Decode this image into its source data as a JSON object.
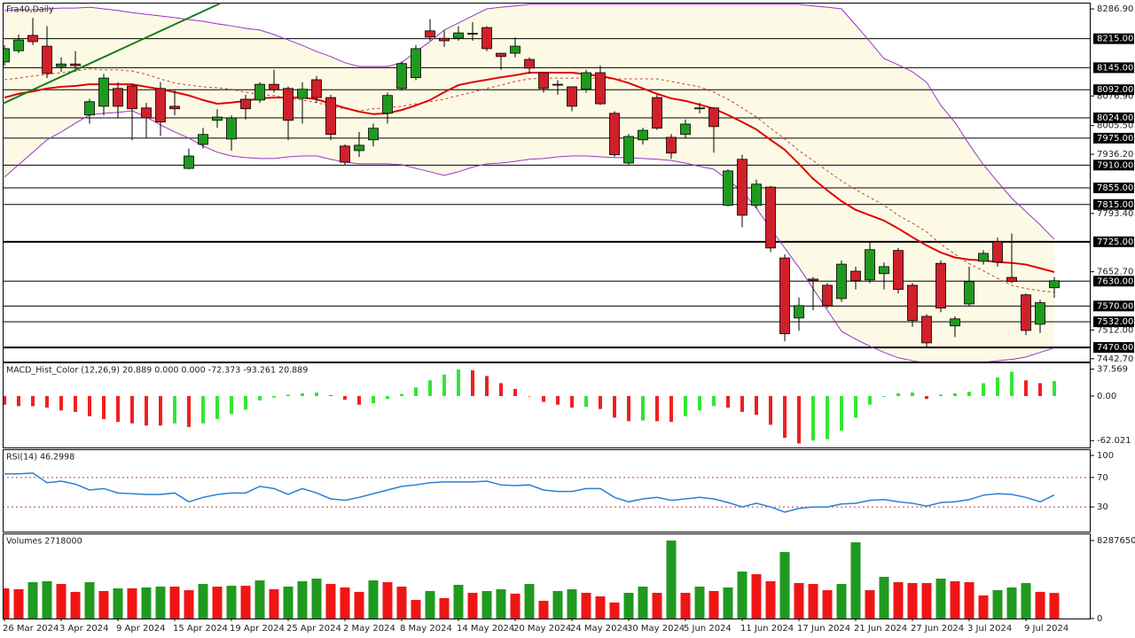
{
  "chart_data": [
    {
      "type": "candlestick",
      "title": "Fra40,Daily",
      "ylim": [
        7436,
        8302
      ],
      "yticks": [
        {
          "value": 8286.9,
          "label": "8286.90"
        },
        {
          "value": 8076.9,
          "label": "8076.90"
        },
        {
          "value": 8005.5,
          "label": "8005.50"
        },
        {
          "value": 7936.2,
          "label": "7936.20"
        },
        {
          "value": 7793.4,
          "label": "7793.40"
        },
        {
          "value": 7652.7,
          "label": "7652.70"
        },
        {
          "value": 7512,
          "label": "7512.00"
        },
        {
          "value": 7442.7,
          "label": "7442.70"
        }
      ],
      "levels": [
        {
          "value": 8215,
          "label": "8215.00"
        },
        {
          "value": 8145,
          "label": "8145.00"
        },
        {
          "value": 8092,
          "label": "8092.00"
        },
        {
          "value": 8024,
          "label": "8024.00"
        },
        {
          "value": 7975,
          "label": "7975.00"
        },
        {
          "value": 7910,
          "label": "7910.00"
        },
        {
          "value": 7855,
          "label": "7855.00"
        },
        {
          "value": 7815,
          "label": "7815.00"
        },
        {
          "value": 7725,
          "label": "7725.00",
          "bold": true
        },
        {
          "value": 7630,
          "label": "7630.00"
        },
        {
          "value": 7570,
          "label": "7570.00"
        },
        {
          "value": 7532,
          "label": "7532.00"
        },
        {
          "value": 7470,
          "label": "7470.00",
          "bold": true
        }
      ],
      "up_color": "#1f9a1f",
      "down_color": "#d0202a",
      "band_fill": "#fcfae4",
      "open": [
        8159,
        8186,
        8223,
        8197,
        8148,
        8154,
        8031,
        8052,
        8095,
        8101,
        8048,
        8095,
        8052,
        7902,
        7960,
        8018,
        7973,
        8069,
        8067,
        8105,
        8095,
        8071,
        8116,
        8073,
        7956,
        7945,
        7971,
        8035,
        8095,
        8121,
        8234,
        8216,
        8216,
        8227,
        8242,
        8180,
        8180,
        8165,
        8133,
        8105,
        8099,
        8093,
        8133,
        8035,
        7915,
        7971,
        8073,
        7977,
        7984,
        8046,
        8048,
        7813,
        7924,
        7813,
        7857,
        7686,
        7541,
        7635,
        7620,
        7588,
        7654,
        7633,
        7648,
        7704,
        7620,
        7545,
        7673,
        7522,
        7575,
        7678,
        7725,
        7639,
        7597,
        7526,
        7614
      ],
      "high": [
        8200,
        8225,
        8265,
        8245,
        8170,
        8185,
        8070,
        8130,
        8110,
        8105,
        8060,
        8110,
        8090,
        7950,
        8000,
        8045,
        8030,
        8080,
        8110,
        8140,
        8100,
        8110,
        8125,
        8080,
        7960,
        7990,
        8010,
        8085,
        8160,
        8200,
        8262,
        8235,
        8245,
        8255,
        8245,
        8180,
        8218,
        8170,
        8135,
        8115,
        8100,
        8140,
        8150,
        8040,
        7985,
        8000,
        8080,
        7985,
        8020,
        8060,
        8050,
        7900,
        7935,
        7875,
        7860,
        7695,
        7590,
        7640,
        7625,
        7680,
        7665,
        7725,
        7675,
        7710,
        7625,
        7550,
        7680,
        7545,
        7665,
        7705,
        7735,
        7745,
        7600,
        7585,
        7640
      ],
      "low": [
        8150,
        8180,
        8200,
        8120,
        8135,
        8135,
        8010,
        8030,
        8025,
        7970,
        7975,
        7980,
        8030,
        7900,
        7950,
        8000,
        7945,
        8020,
        8060,
        8085,
        7970,
        8010,
        8060,
        7970,
        7910,
        7930,
        7955,
        8010,
        8090,
        8115,
        8210,
        8195,
        8210,
        8210,
        8185,
        8140,
        8170,
        8130,
        8085,
        8080,
        8040,
        8085,
        8055,
        7930,
        7910,
        7960,
        7995,
        7925,
        7975,
        8035,
        7940,
        7810,
        7760,
        7805,
        7700,
        7485,
        7510,
        7560,
        7565,
        7580,
        7610,
        7625,
        7610,
        7600,
        7520,
        7470,
        7555,
        7495,
        7570,
        7670,
        7665,
        7625,
        7500,
        7505,
        7590
      ],
      "close": [
        8191,
        8212,
        8208,
        8131,
        8154,
        8150,
        8063,
        8120,
        8052,
        8046,
        8024,
        8014,
        8046,
        7932,
        7984,
        8026,
        8024,
        8046,
        8105,
        8092,
        8018,
        8093,
        8073,
        7984,
        7917,
        7958,
        7999,
        8078,
        8155,
        8191,
        8219,
        8210,
        8229,
        8228,
        8191,
        8172,
        8197,
        8144,
        8095,
        8103,
        8052,
        8133,
        8058,
        7935,
        7979,
        7994,
        7999,
        7939,
        8009,
        8048,
        8003,
        7896,
        7789,
        7864,
        7710,
        7503,
        7571,
        7631,
        7571,
        7671,
        7631,
        7706,
        7665,
        7610,
        7535,
        7481,
        7565,
        7539,
        7629,
        7697,
        7676,
        7629,
        7511,
        7578,
        7631
      ],
      "series": [
        {
          "color": "#9933cc",
          "line_style": "thin",
          "values": [
            8283,
            8285,
            8285,
            8287,
            8289,
            8289,
            8291,
            8287,
            8283,
            8278,
            8274,
            8270,
            8266,
            8261,
            8257,
            8251,
            8246,
            8240,
            8236,
            8225,
            8212,
            8199,
            8184,
            8172,
            8157,
            8148,
            8148,
            8148,
            8157,
            8184,
            8208,
            8236,
            8253,
            8270,
            8287,
            8291,
            8294,
            8298,
            8298,
            8298,
            8298,
            8298,
            8298,
            8298,
            8298,
            8298,
            8298,
            8298,
            8298,
            8298,
            8298,
            8298,
            8298,
            8298,
            8298,
            8298,
            8298,
            8294,
            8291,
            8287,
            8248,
            8208,
            8167,
            8152,
            8135,
            8110,
            8054,
            8013,
            7960,
            7911,
            7870,
            7830,
            7798,
            7766,
            7731
          ]
        },
        {
          "color": "#9933cc",
          "line_style": "thin",
          "values": [
            7881,
            7911,
            7941,
            7971,
            7990,
            8011,
            8031,
            8035,
            8037,
            8041,
            8026,
            8007,
            7990,
            7975,
            7956,
            7941,
            7932,
            7928,
            7926,
            7926,
            7930,
            7932,
            7932,
            7924,
            7917,
            7913,
            7913,
            7913,
            7911,
            7902,
            7894,
            7885,
            7894,
            7905,
            7913,
            7915,
            7919,
            7924,
            7926,
            7930,
            7932,
            7932,
            7930,
            7928,
            7928,
            7926,
            7924,
            7921,
            7915,
            7907,
            7900,
            7874,
            7847,
            7806,
            7757,
            7710,
            7663,
            7612,
            7560,
            7509,
            7490,
            7473,
            7458,
            7445,
            7438,
            7432,
            7432,
            7432,
            7432,
            7434,
            7438,
            7441,
            7447,
            7458,
            7469
          ]
        },
        {
          "color": "#c04040",
          "line_style": "dashed",
          "values": [
            8116,
            8120,
            8125,
            8129,
            8133,
            8137,
            8142,
            8140,
            8140,
            8137,
            8129,
            8118,
            8108,
            8103,
            8099,
            8097,
            8093,
            8086,
            8080,
            8078,
            8071,
            8067,
            8061,
            8052,
            8046,
            8041,
            8046,
            8048,
            8052,
            8058,
            8063,
            8069,
            8078,
            8086,
            8095,
            8103,
            8112,
            8118,
            8120,
            8120,
            8120,
            8120,
            8120,
            8118,
            8118,
            8118,
            8118,
            8112,
            8105,
            8099,
            8086,
            8069,
            8048,
            8026,
            7999,
            7973,
            7945,
            7921,
            7896,
            7872,
            7851,
            7832,
            7813,
            7789,
            7770,
            7749,
            7719,
            7695,
            7672,
            7655,
            7637,
            7620,
            7612,
            7607,
            7603
          ]
        },
        {
          "color": "#e00000",
          "line_style": "thick",
          "values": [
            8073,
            8082,
            8088,
            8095,
            8099,
            8101,
            8105,
            8105,
            8105,
            8105,
            8099,
            8093,
            8086,
            8078,
            8067,
            8058,
            8061,
            8065,
            8071,
            8073,
            8073,
            8073,
            8069,
            8058,
            8048,
            8039,
            8033,
            8035,
            8043,
            8054,
            8067,
            8086,
            8103,
            8110,
            8116,
            8122,
            8127,
            8133,
            8133,
            8133,
            8133,
            8129,
            8125,
            8118,
            8108,
            8095,
            8082,
            8071,
            8065,
            8056,
            8046,
            8031,
            8014,
            7996,
            7971,
            7947,
            7913,
            7877,
            7849,
            7823,
            7802,
            7789,
            7776,
            7757,
            7736,
            7716,
            7699,
            7687,
            7682,
            7680,
            7676,
            7674,
            7670,
            7661,
            7652
          ]
        }
      ]
    },
    {
      "type": "histogram",
      "title": "MACD_Hist_Color (12,26,9) 20.889 0.000 0.000 -72.373 -93.261 20.889",
      "ylim": [
        -71.6,
        45.7
      ],
      "yticks": [
        37.569,
        {
          "value": 0,
          "label": "0.00"
        },
        -62.021
      ],
      "up_color": "#33e633",
      "down_color": "#f02020",
      "values": [
        -12,
        -14,
        -14,
        -16,
        -20,
        -22,
        -28,
        -32,
        -36,
        -38,
        -41,
        -41,
        -38,
        -43,
        -38,
        -32,
        -25,
        -19,
        -6,
        -2,
        2,
        4,
        5,
        1,
        -5,
        -12,
        -10,
        -4,
        3,
        12,
        22,
        30,
        37,
        36,
        28,
        18,
        10,
        0,
        -8,
        -12,
        -16,
        -15,
        -18,
        -30,
        -35,
        -34,
        -35,
        -36,
        -28,
        -20,
        -14,
        -16,
        -22,
        -26,
        -40,
        -58,
        -66,
        -62,
        -60,
        -48,
        -30,
        -12,
        -1,
        4,
        5,
        -4,
        2,
        4,
        6,
        18,
        26,
        34,
        22,
        18,
        20.889
      ]
    },
    {
      "type": "line",
      "title": "RSI(14) 46.2998",
      "ylim": [
        -3.6,
        107.2
      ],
      "yticks": [
        100,
        70,
        30
      ],
      "color": "#2a7fd4",
      "level_color": "#c04040",
      "levels": [
        {
          "value": 70
        },
        {
          "value": 30
        }
      ],
      "values": [
        75,
        75,
        76,
        63,
        65,
        61,
        53,
        55,
        49,
        48,
        47,
        47,
        49,
        37,
        43,
        47,
        49,
        49,
        58,
        55,
        47,
        55,
        49,
        41,
        39,
        43,
        48,
        53,
        58,
        60,
        63,
        64,
        64,
        64,
        65,
        60,
        59,
        60,
        53,
        51,
        51,
        55,
        55,
        43,
        37,
        41,
        43,
        39,
        41,
        43,
        41,
        36,
        30,
        35,
        30,
        23,
        28,
        30,
        30,
        34,
        35,
        39,
        40,
        37,
        35,
        31,
        36,
        37,
        40,
        46,
        48,
        47,
        43,
        37,
        46.2998
      ]
    },
    {
      "type": "bar",
      "title": "Volumes 2718000",
      "ylim": [
        0,
        8947000
      ],
      "yticks": [
        8287650,
        0
      ],
      "up_color": "#1f9a1f",
      "down_color": "#f01515",
      "categories": [
        "26 Mar 2024",
        null,
        null,
        null,
        "3 Apr 2024",
        null,
        null,
        null,
        "9 Apr 2024",
        null,
        null,
        null,
        "15 Apr 2024",
        null,
        null,
        null,
        "19 Apr 2024",
        null,
        null,
        null,
        "25 Apr 2024",
        null,
        null,
        null,
        "2 May 2024",
        null,
        null,
        null,
        "8 May 2024",
        null,
        null,
        null,
        "14 May 2024",
        null,
        null,
        null,
        "20 May 2024",
        null,
        null,
        null,
        "24 May 2024",
        null,
        null,
        null,
        "30 May 2024",
        null,
        null,
        null,
        "5 Jun 2024",
        null,
        null,
        null,
        "11 Jun 2024",
        null,
        null,
        null,
        "17 Jun 2024",
        null,
        null,
        null,
        "21 Jun 2024",
        null,
        null,
        null,
        "27 Jun 2024",
        null,
        null,
        null,
        "3 Jul 2024",
        null,
        null,
        null,
        "9 Jul 2024",
        null,
        null
      ],
      "values": [
        3200000,
        3110000,
        3860000,
        3960000,
        3670000,
        2830000,
        3860000,
        2920000,
        3200000,
        3200000,
        3300000,
        3390000,
        3390000,
        3010000,
        3670000,
        3390000,
        3480000,
        3480000,
        4050000,
        3110000,
        3390000,
        3960000,
        4240000,
        3670000,
        3300000,
        2830000,
        4050000,
        3860000,
        3390000,
        1980000,
        2920000,
        2170000,
        3580000,
        2730000,
        2920000,
        3110000,
        2640000,
        3670000,
        1880000,
        2920000,
        3110000,
        2730000,
        2350000,
        1700000,
        2730000,
        3390000,
        2730000,
        8287650,
        2730000,
        3390000,
        2920000,
        3300000,
        4990000,
        4710000,
        3960000,
        7060000,
        3770000,
        3670000,
        3010000,
        3670000,
        8100000,
        3010000,
        4430000,
        3860000,
        3770000,
        3770000,
        4240000,
        3960000,
        3860000,
        2450000,
        3010000,
        3300000,
        3770000,
        2830000,
        2718000
      ]
    }
  ]
}
